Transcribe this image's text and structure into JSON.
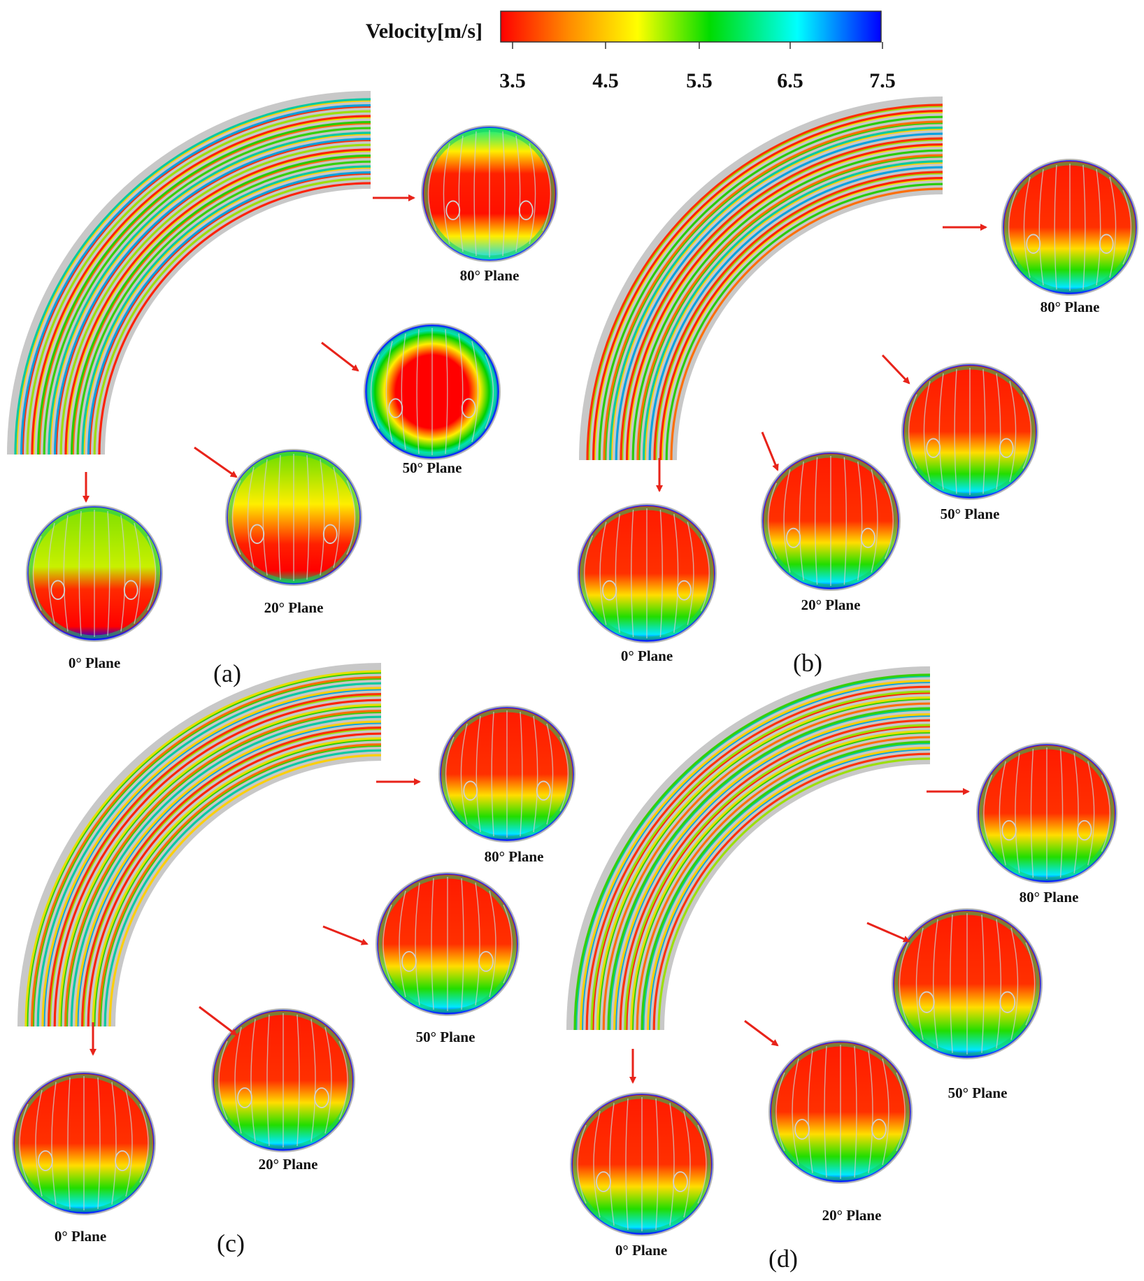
{
  "colorbar": {
    "title": "Velocity[m/s]",
    "ticks": [
      "3.5",
      "4.5",
      "5.5",
      "6.5",
      "7.5"
    ],
    "colors": [
      "#ff0000",
      "#ff8c00",
      "#ffff00",
      "#00dc00",
      "#00ffff",
      "#0000ff"
    ]
  },
  "panels": [
    {
      "label": "(a)",
      "planes": [
        "0° Plane",
        "20° Plane",
        "50° Plane",
        "80° Plane"
      ]
    },
    {
      "label": "(b)",
      "planes": [
        "0° Plane",
        "20° Plane",
        "50° Plane",
        "80° Plane"
      ]
    },
    {
      "label": "(c)",
      "planes": [
        "0° Plane",
        "20° Plane",
        "50° Plane",
        "80° Plane"
      ]
    },
    {
      "label": "(d)",
      "planes": [
        "0° Plane",
        "20° Plane",
        "50° Plane",
        "80° Plane"
      ]
    }
  ],
  "arrow_color": "#e8231a"
}
